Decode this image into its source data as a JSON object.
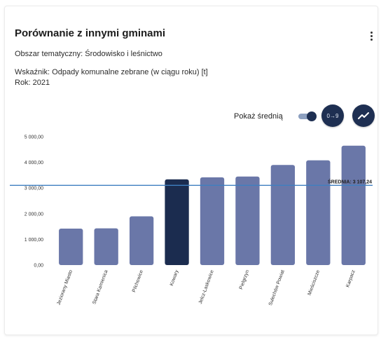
{
  "header": {
    "title": "Porównanie z innymi gminami",
    "area": "Obszar tematyczny: Środowisko i leśnictwo",
    "indicator": "Wskaźnik: Odpady komunalne zebrane (w ciągu roku) [t]",
    "year": "Rok: 2021"
  },
  "controls": {
    "toggle_label": "Pokaż średnią",
    "toggle_on": true,
    "sort_button_label": "0→9"
  },
  "colors": {
    "bar": "#6a77a8",
    "bar_highlight": "#1b2c4f",
    "avg_line": "#3f7fc0",
    "button": "#1e2f52"
  },
  "chart_data": {
    "type": "bar",
    "categories": [
      "Jeziorany Miasto",
      "Stara Kamienica",
      "Pilchowice",
      "Kowary",
      "Jelcz-Laskowice",
      "Pielgrzyn",
      "Sulechów Powiat",
      "Mieściszcze",
      "Karpacz"
    ],
    "values": [
      1420,
      1430,
      1900,
      3340,
      3420,
      3450,
      3900,
      4080,
      4650
    ],
    "highlight_index": 3,
    "average": 3107.24,
    "average_label": "ŚREDNIA: 3 107,24",
    "y_ticks": [
      "0,00",
      "1 000,00",
      "2 000,00",
      "3 000,00",
      "4 000,00",
      "5 000,00"
    ],
    "ylim": [
      0,
      5000
    ],
    "grid": false,
    "legend": "none"
  }
}
